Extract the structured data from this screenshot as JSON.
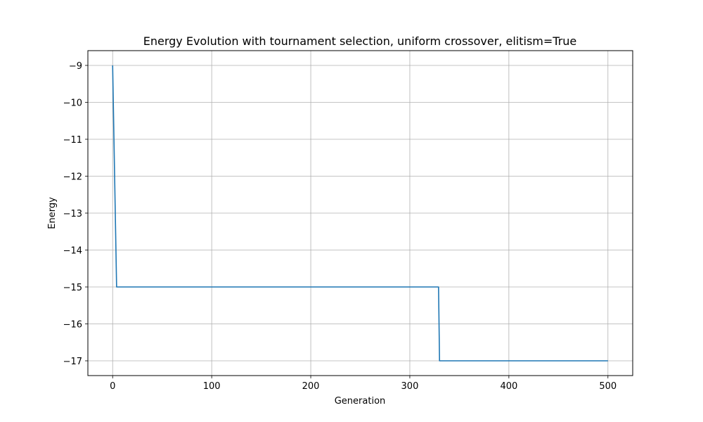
{
  "chart_data": {
    "type": "line",
    "title": "Energy Evolution with tournament selection, uniform crossover, elitism=True",
    "xlabel": "Generation",
    "ylabel": "Energy",
    "xlim": [
      -25,
      525
    ],
    "ylim": [
      -17.4,
      -8.6
    ],
    "xticks": [
      0,
      100,
      200,
      300,
      400,
      500
    ],
    "yticks": [
      -9,
      -10,
      -11,
      -12,
      -13,
      -14,
      -15,
      -16,
      -17
    ],
    "xtick_labels": [
      "0",
      "100",
      "200",
      "300",
      "400",
      "500"
    ],
    "ytick_labels": [
      "−9",
      "−10",
      "−11",
      "−12",
      "−13",
      "−14",
      "−15",
      "−16",
      "−17"
    ],
    "grid": true,
    "series": [
      {
        "color": "#1f77b4",
        "x": [
          0,
          4,
          5,
          329,
          330,
          500
        ],
        "y": [
          -9,
          -15,
          -15,
          -15,
          -17,
          -17
        ]
      }
    ]
  }
}
